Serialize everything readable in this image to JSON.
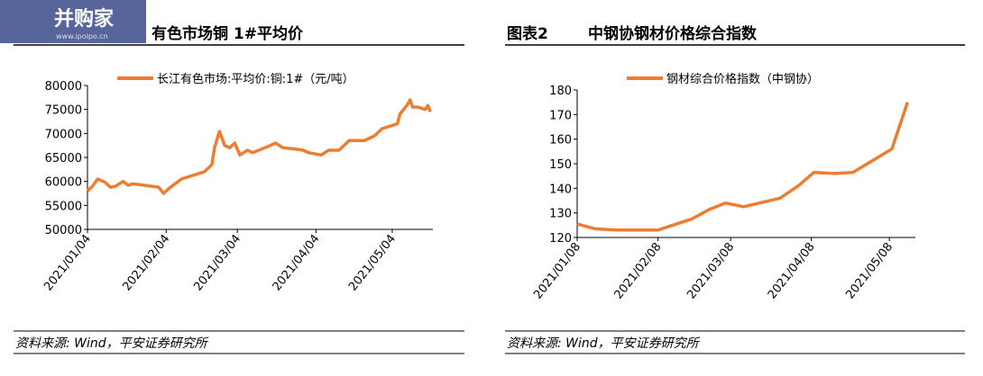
{
  "watermark": {
    "text": "并购家",
    "url": "www.ipoipo.cn"
  },
  "chart_data": [
    {
      "type": "line",
      "title": "有色市场铜 1#平均价",
      "x": [
        "2021-01-04",
        "2021-01-06",
        "2021-01-08",
        "2021-01-11",
        "2021-01-13",
        "2021-01-15",
        "2021-01-18",
        "2021-01-20",
        "2021-01-22",
        "2021-01-26",
        "2021-01-29",
        "2021-02-01",
        "2021-02-03",
        "2021-02-05",
        "2021-02-10",
        "2021-02-19",
        "2021-02-22",
        "2021-02-23",
        "2021-02-25",
        "2021-02-27",
        "2021-03-01",
        "2021-03-03",
        "2021-03-05",
        "2021-03-08",
        "2021-03-10",
        "2021-03-17",
        "2021-03-19",
        "2021-03-22",
        "2021-03-26",
        "2021-03-30",
        "2021-04-01",
        "2021-04-06",
        "2021-04-09",
        "2021-04-13",
        "2021-04-17",
        "2021-04-23",
        "2021-04-27",
        "2021-04-30",
        "2021-05-06",
        "2021-05-07",
        "2021-05-10",
        "2021-05-11",
        "2021-05-12",
        "2021-05-14",
        "2021-05-17",
        "2021-05-18",
        "2021-05-19"
      ],
      "series": [
        {
          "name": "长江有色市场:平均价:铜:1#（元/吨）",
          "color": "#ed7d31",
          "values": [
            58000,
            59000,
            60500,
            59800,
            58800,
            59000,
            60000,
            59200,
            59500,
            59200,
            59000,
            58800,
            57500,
            58500,
            60500,
            62000,
            63500,
            67000,
            70400,
            67500,
            67000,
            68000,
            65500,
            66500,
            66000,
            67500,
            68000,
            67000,
            66800,
            66500,
            66000,
            65500,
            66500,
            66500,
            68500,
            68500,
            69500,
            71000,
            72000,
            74000,
            76000,
            77000,
            75500,
            75500,
            75000,
            75800,
            74500
          ]
        }
      ],
      "xlim": [
        "2021-01-04",
        "2021-05-20"
      ],
      "xticks": [
        {
          "value": "2021-01-04",
          "label": "2021/01/04"
        },
        {
          "value": "2021-02-04",
          "label": "2021/02/04"
        },
        {
          "value": "2021-03-04",
          "label": "2021/03/04"
        },
        {
          "value": "2021-04-04",
          "label": "2021/04/04"
        },
        {
          "value": "2021-05-04",
          "label": "2021/05/04"
        }
      ],
      "ylim": [
        50000,
        80000
      ],
      "yticks": [
        50000,
        55000,
        60000,
        65000,
        70000,
        75000,
        80000
      ],
      "source": "资料来源: Wind，平安证券研究所"
    },
    {
      "type": "line",
      "label": "图表2",
      "title": "中钢协钢材价格综合指数",
      "x": [
        "2021-01-08",
        "2021-01-15",
        "2021-01-23",
        "2021-02-08",
        "2021-02-21",
        "2021-02-28",
        "2021-03-06",
        "2021-03-13",
        "2021-03-27",
        "2021-04-03",
        "2021-04-09",
        "2021-04-17",
        "2021-04-24",
        "2021-05-09",
        "2021-05-15"
      ],
      "series": [
        {
          "name": "钢材综合价格指数（中钢协）",
          "color": "#ed7d31",
          "values": [
            125.5,
            123.5,
            123,
            123,
            127.5,
            131.5,
            134,
            132.5,
            136,
            141,
            146.5,
            146,
            146.5,
            156,
            175
          ]
        }
      ],
      "xlim": [
        "2021-01-08",
        "2021-05-18"
      ],
      "xticks": [
        {
          "value": "2021-01-08",
          "label": "2021/01/08"
        },
        {
          "value": "2021-02-08",
          "label": "2021/02/08"
        },
        {
          "value": "2021-03-08",
          "label": "2021/03/08"
        },
        {
          "value": "2021-04-08",
          "label": "2021/04/08"
        },
        {
          "value": "2021-05-08",
          "label": "2021/05/08"
        }
      ],
      "ylim": [
        120,
        180
      ],
      "yticks": [
        120,
        130,
        140,
        150,
        160,
        170,
        180
      ],
      "source": "资料来源: Wind，平安证券研究所"
    }
  ]
}
